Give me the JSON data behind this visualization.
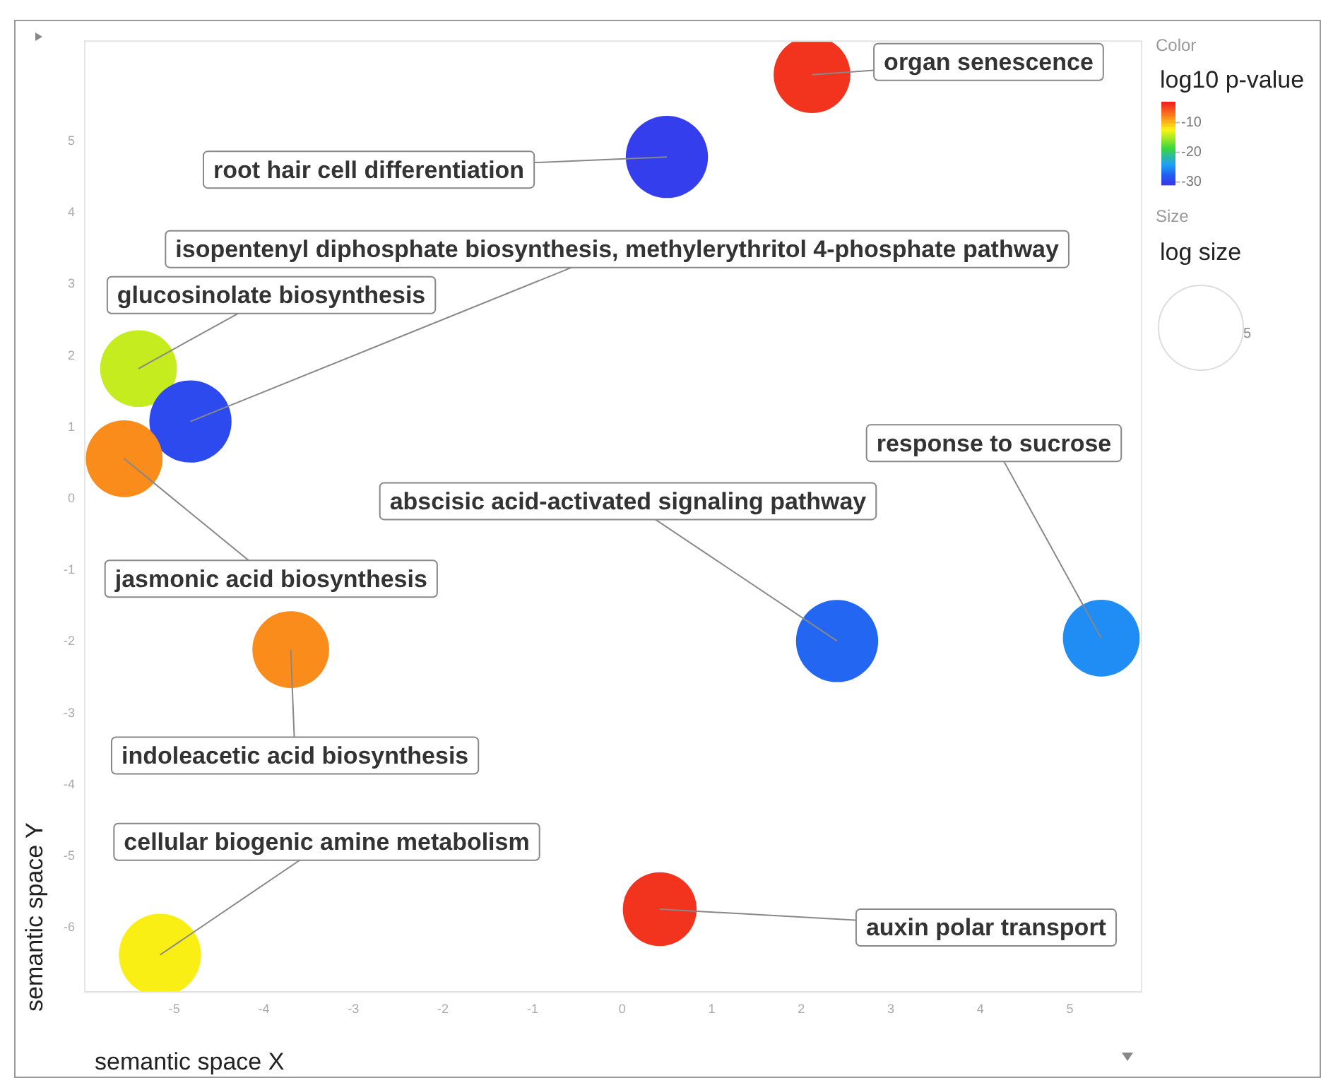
{
  "chart_data": {
    "type": "bubble",
    "xlabel": "semantic space X",
    "ylabel": "semantic space Y",
    "clabel": "log10 p-value",
    "xlim": [
      -6,
      5.8
    ],
    "ylim": [
      -6.9,
      6.4
    ],
    "xticks": [
      -5,
      -4,
      -3,
      -2,
      -1,
      0,
      1,
      2,
      3,
      4,
      5
    ],
    "yticks": [
      -6,
      -5,
      -4,
      -3,
      -2,
      -1,
      0,
      1,
      2,
      3,
      4,
      5
    ],
    "grid": false,
    "legend": false,
    "clim": [
      -31,
      -3
    ],
    "cticks": [
      -10,
      -20,
      -30
    ],
    "size_legend": [
      5
    ],
    "x": [
      2.12,
      0.5,
      -5.4,
      -4.82,
      -5.56,
      -3.7,
      2.4,
      5.35,
      0.42,
      -5.16
    ],
    "values": [
      5.93,
      4.78,
      1.82,
      1.08,
      0.56,
      -2.11,
      -1.99,
      -1.95,
      -5.74,
      -6.38
    ],
    "sizes": [
      4.1,
      4.7,
      4.1,
      4.7,
      4.1,
      4.1,
      4.7,
      4.1,
      3.8,
      4.7
    ],
    "cvalues": [
      -4,
      -30,
      -14,
      -29,
      -8,
      -8,
      -27,
      -25,
      -4,
      -12
    ],
    "annotations": [
      {
        "text": "organ senescence",
        "x": 2.12,
        "y": 5.93
      },
      {
        "text": "root hair cell differentiation",
        "x": 0.5,
        "y": 4.78
      },
      {
        "text": "glucosinolate biosynthesis",
        "x": -5.4,
        "y": 1.82
      },
      {
        "text": "isopentenyl diphosphate biosynthesis, methylerythritol 4-phosphate pathway",
        "x": -4.82,
        "y": 1.08
      },
      {
        "text": "jasmonic acid biosynthesis",
        "x": -5.56,
        "y": 0.56
      },
      {
        "text": "indoleacetic acid biosynthesis",
        "x": -3.7,
        "y": -2.11
      },
      {
        "text": "abscisic acid-activated signaling pathway",
        "x": 2.4,
        "y": -1.99
      },
      {
        "text": "response to sucrose",
        "x": 5.35,
        "y": -1.95
      },
      {
        "text": "auxin polar transport",
        "x": 0.42,
        "y": -5.74
      },
      {
        "text": "cellular biogenic amine metabolism",
        "x": -5.16,
        "y": -6.38
      },
      "Color",
      "Size",
      "log size"
    ]
  }
}
